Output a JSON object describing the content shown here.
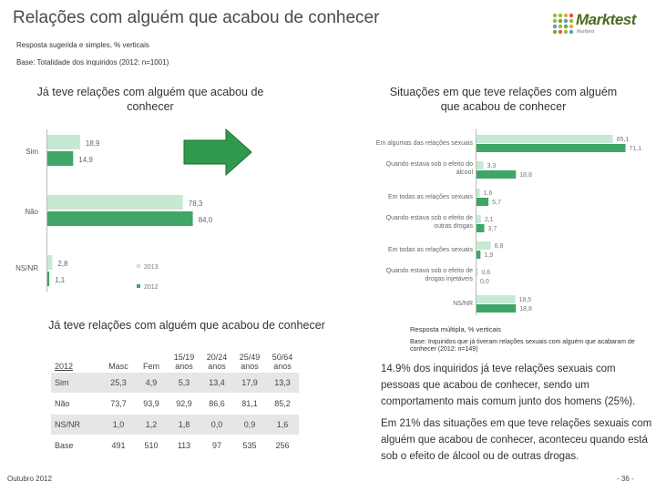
{
  "title": "Relações com alguém que acabou de conhecer",
  "logo": {
    "name": "Marktest",
    "tagline": "Marktest"
  },
  "subtitle_1": "Resposta sugerida e simples, % verticais",
  "subtitle_2": "Base: Totalidade dos inquiridos (2012: n=1001)",
  "colors": {
    "series_2013": "#c6e9d4",
    "series_2012": "#3fa667",
    "arrow": "#2f9a4c",
    "table_shade": "#e6e6e6"
  },
  "chart_data": [
    {
      "type": "bar",
      "orientation": "horizontal",
      "title": "Já teve relações com alguém que acabou de conhecer",
      "categories": [
        "Sim",
        "Não",
        "NS/NR"
      ],
      "series": [
        {
          "name": "2013",
          "values": [
            18.9,
            78.3,
            2.8
          ]
        },
        {
          "name": "2012",
          "values": [
            14.9,
            84.0,
            1.1
          ]
        }
      ],
      "value_labels": {
        "2013": [
          "18,9",
          "78,3",
          "2,8"
        ],
        "2012": [
          "14,9",
          "84,0",
          "1,1"
        ]
      },
      "legend": [
        "2013",
        "2012"
      ],
      "legend_position": "bottom-right",
      "xlim": [
        0,
        100
      ],
      "grid": false
    },
    {
      "type": "bar",
      "orientation": "horizontal",
      "title": "Situações em que teve relações com alguém que acabou de conhecer",
      "categories": [
        "Em algumas das relações sexuais",
        "Quando estava sob o efeito do álcool",
        "Em todas as relações sexuais",
        "Quando estava sob o efeito de outras drogas",
        "Em todas as relações sexuais",
        "Quando estava sob o efeito de drogas injetáveis",
        "NS/NR"
      ],
      "series": [
        {
          "name": "2013",
          "values": [
            65.1,
            3.3,
            1.6,
            2.1,
            6.8,
            0.6,
            18.5
          ]
        },
        {
          "name": "2012",
          "values": [
            71.1,
            18.8,
            5.7,
            3.7,
            1.9,
            0.0,
            18.8
          ]
        }
      ],
      "value_labels": {
        "2013": [
          "65,1",
          "3,3",
          "1,6",
          "2,1",
          "6,8",
          "0,6",
          "18,5"
        ],
        "2012": [
          "71,1",
          "18,8",
          "5,7",
          "3,7",
          "1,9",
          "0,0",
          "18,8"
        ]
      },
      "xlim": [
        0,
        100
      ],
      "grid": false
    },
    {
      "type": "table",
      "title": "Já teve relações com alguém que acabou de conhecer",
      "year": "2012",
      "columns": [
        "Masc",
        "Fem",
        "15/19 anos",
        "20/24 anos",
        "25/49 anos",
        "50/64 anos"
      ],
      "rows": [
        {
          "label": "Sim",
          "values": [
            "25,3",
            "4,9",
            "5,3",
            "13,4",
            "17,9",
            "13,3"
          ]
        },
        {
          "label": "Não",
          "values": [
            "73,7",
            "93,9",
            "92,9",
            "86,6",
            "81,1",
            "85,2"
          ]
        },
        {
          "label": "NS/NR",
          "values": [
            "1,0",
            "1,2",
            "1,8",
            "0,0",
            "0,9",
            "1,6"
          ]
        },
        {
          "label": "Base",
          "values": [
            "491",
            "510",
            "113",
            "97",
            "535",
            "256"
          ]
        }
      ]
    }
  ],
  "right_notes": {
    "note_1": "Resposta múltipla, % verticais",
    "note_2": "Base: Inquiridos que já tiveram relações sexuais com alguém que acabaram de conhecer (2012: n=149)"
  },
  "bullets": [
    "14.9% dos inquiridos já teve relações sexuais com pessoas que acabou de conhecer, sendo um comportamento mais comum junto dos homens (25%).",
    "Em 21% das situações em que teve relações sexuais com alguém que acabou de conhecer, aconteceu quando está sob o efeito de álcool ou de outras drogas."
  ],
  "footer": {
    "date": "Outubro 2012",
    "page": "- 36 -"
  }
}
